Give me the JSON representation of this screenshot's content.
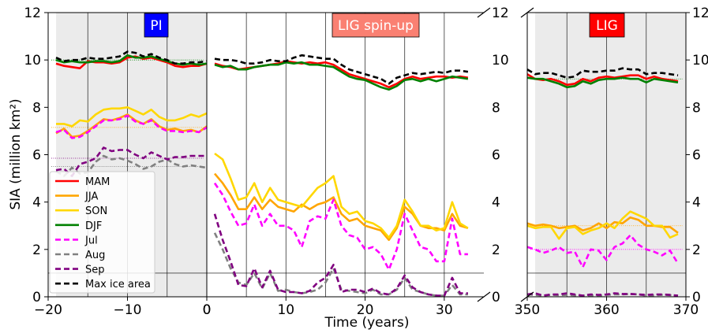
{
  "chart_data": {
    "type": "line",
    "ylabel": "SIA (million km²)",
    "xlabel": "Time (years)",
    "ylim": [
      0,
      12
    ],
    "yticks": [
      "0",
      "2",
      "4",
      "6",
      "8",
      "10",
      "12"
    ],
    "grid": false,
    "legend_placement": "lower-left",
    "colors": {
      "MAM": "#ff0000",
      "JJA": "#ffa500",
      "SON": "#ffd700",
      "DJF": "#008000",
      "Jul": "#ff00ff",
      "Aug": "#808080",
      "Sep": "#800080",
      "Max ice area": "#000000",
      "pi_label_bg": "#0000ff",
      "spinup_label_bg": "#fa8072",
      "lig_label_bg": "#ff0000",
      "shade": "#ebebeb"
    },
    "legend": [
      {
        "name": "MAM",
        "dashed": false
      },
      {
        "name": "JJA",
        "dashed": false
      },
      {
        "name": "SON",
        "dashed": false
      },
      {
        "name": "DJF",
        "dashed": false
      },
      {
        "name": "Jul",
        "dashed": true
      },
      {
        "name": "Aug",
        "dashed": true
      },
      {
        "name": "Sep",
        "dashed": true
      },
      {
        "name": "Max ice area",
        "dashed": true
      }
    ],
    "reference_line_y": 1,
    "panels": [
      {
        "id": "pi",
        "label": "PI",
        "xlim": [
          -20,
          0
        ],
        "xticks": [
          "−20",
          "−10",
          "0"
        ],
        "xtick_values": [
          -20,
          -10,
          0
        ],
        "shaded": true,
        "vlines": [
          -15,
          -10,
          -5
        ],
        "x": [
          -19,
          -18,
          -17,
          -16,
          -15,
          -14,
          -13,
          -12,
          -11,
          -10,
          -9,
          -8,
          -7,
          -6,
          -5,
          -4,
          -3,
          -2,
          -1,
          0
        ],
        "series": [
          {
            "name": "MAM",
            "values": [
              9.85,
              9.75,
              9.7,
              9.65,
              9.95,
              9.9,
              9.9,
              9.85,
              9.9,
              10.1,
              10.15,
              10.05,
              10.1,
              10.0,
              9.9,
              9.75,
              9.7,
              9.75,
              9.75,
              9.85
            ]
          },
          {
            "name": "JJA",
            "values": [
              6.9,
              7.1,
              6.75,
              6.8,
              7.0,
              7.25,
              7.5,
              7.45,
              7.55,
              7.7,
              7.45,
              7.3,
              7.5,
              7.2,
              7.05,
              7.1,
              7.0,
              7.05,
              6.95,
              7.2
            ]
          },
          {
            "name": "SON",
            "values": [
              7.3,
              7.3,
              7.2,
              7.45,
              7.4,
              7.7,
              7.9,
              7.95,
              7.95,
              8.0,
              7.85,
              7.7,
              7.9,
              7.6,
              7.45,
              7.45,
              7.55,
              7.7,
              7.6,
              7.75
            ]
          },
          {
            "name": "DJF",
            "values": [
              10.0,
              9.9,
              9.95,
              9.9,
              9.9,
              9.95,
              9.95,
              9.9,
              9.95,
              10.2,
              10.1,
              10.1,
              10.15,
              10.05,
              9.95,
              9.85,
              9.8,
              9.85,
              9.8,
              9.85
            ]
          },
          {
            "name": "Jul",
            "values": [
              6.95,
              7.05,
              6.7,
              6.75,
              6.95,
              7.2,
              7.45,
              7.45,
              7.5,
              7.65,
              7.4,
              7.3,
              7.45,
              7.15,
              7.0,
              7.0,
              6.95,
              7.0,
              6.95,
              7.15
            ]
          },
          {
            "name": "Aug",
            "values": [
              5.3,
              5.1,
              5.45,
              5.2,
              5.25,
              5.7,
              5.95,
              5.8,
              5.85,
              5.75,
              5.6,
              5.4,
              5.5,
              5.7,
              5.8,
              5.6,
              5.5,
              5.55,
              5.5,
              5.45
            ]
          },
          {
            "name": "Sep",
            "values": [
              5.35,
              5.4,
              5.1,
              5.6,
              5.7,
              5.85,
              6.3,
              6.15,
              6.2,
              6.2,
              6.0,
              5.85,
              6.1,
              5.95,
              5.8,
              5.9,
              5.9,
              5.95,
              5.95,
              5.95
            ]
          },
          {
            "name": "Max ice area",
            "values": [
              10.1,
              9.95,
              10.0,
              10.0,
              10.1,
              10.05,
              10.05,
              10.1,
              10.15,
              10.35,
              10.3,
              10.15,
              10.25,
              10.1,
              10.0,
              9.85,
              9.85,
              9.9,
              9.9,
              9.95
            ]
          }
        ],
        "means": {
          "DJF": 10.0,
          "JJA": 7.15,
          "Sep": 5.85,
          "Aug": 5.5
        }
      },
      {
        "id": "spinup",
        "label": "LIG spin-up",
        "xlim": [
          0,
          35
        ],
        "xticks": [
          "0",
          "10",
          "20",
          "30"
        ],
        "xtick_values": [
          0,
          10,
          20,
          30
        ],
        "shaded": false,
        "vlines": [
          5,
          10,
          15,
          20,
          25,
          30
        ],
        "x": [
          1,
          2,
          3,
          4,
          5,
          6,
          7,
          8,
          9,
          10,
          11,
          12,
          13,
          14,
          15,
          16,
          17,
          18,
          19,
          20,
          21,
          22,
          23,
          24,
          25,
          26,
          27,
          28,
          29,
          30,
          31,
          32,
          33
        ],
        "series": [
          {
            "name": "MAM",
            "values": [
              9.85,
              9.75,
              9.7,
              9.6,
              9.65,
              9.7,
              9.75,
              9.8,
              9.85,
              9.95,
              9.9,
              9.85,
              9.9,
              9.85,
              9.9,
              9.8,
              9.6,
              9.4,
              9.3,
              9.2,
              9.1,
              9.0,
              8.85,
              9.0,
              9.2,
              9.3,
              9.2,
              9.25,
              9.3,
              9.3,
              9.25,
              9.3,
              9.25
            ]
          },
          {
            "name": "JJA",
            "values": [
              5.2,
              4.8,
              4.3,
              3.7,
              3.7,
              4.2,
              3.7,
              4.1,
              3.8,
              3.7,
              3.6,
              3.9,
              3.7,
              3.9,
              4.0,
              4.2,
              3.5,
              3.2,
              3.3,
              3.0,
              2.9,
              2.8,
              2.4,
              2.9,
              3.8,
              3.5,
              3.0,
              2.9,
              2.9,
              2.8,
              3.5,
              3.0,
              2.9
            ]
          },
          {
            "name": "SON",
            "values": [
              6.05,
              5.8,
              5.0,
              4.1,
              4.2,
              4.8,
              4.0,
              4.6,
              4.1,
              4.0,
              3.9,
              3.8,
              4.2,
              4.6,
              4.8,
              5.1,
              3.8,
              3.5,
              3.6,
              3.2,
              3.1,
              2.9,
              2.5,
              3.0,
              4.1,
              3.6,
              3.0,
              3.0,
              2.8,
              2.9,
              4.0,
              3.1,
              2.9
            ]
          },
          {
            "name": "DJF",
            "values": [
              9.8,
              9.7,
              9.75,
              9.6,
              9.6,
              9.7,
              9.75,
              9.8,
              9.8,
              9.9,
              9.85,
              9.9,
              9.8,
              9.8,
              9.75,
              9.7,
              9.5,
              9.3,
              9.2,
              9.15,
              9.0,
              8.85,
              8.75,
              8.9,
              9.15,
              9.2,
              9.1,
              9.2,
              9.1,
              9.2,
              9.3,
              9.25,
              9.2
            ]
          },
          {
            "name": "Jul",
            "values": [
              4.8,
              4.3,
              3.6,
              3.0,
              3.1,
              3.9,
              3.0,
              3.5,
              3.0,
              3.0,
              2.8,
              2.1,
              3.2,
              3.4,
              3.3,
              4.1,
              3.0,
              2.6,
              2.5,
              2.0,
              2.1,
              1.8,
              1.15,
              2.0,
              3.5,
              2.8,
              2.1,
              2.0,
              1.5,
              1.5,
              3.3,
              1.8,
              1.8
            ]
          },
          {
            "name": "Aug",
            "values": [
              2.7,
              2.0,
              1.2,
              0.6,
              0.5,
              1.0,
              0.35,
              1.0,
              0.25,
              0.3,
              0.2,
              0.15,
              0.2,
              0.3,
              0.6,
              1.2,
              0.3,
              0.25,
              0.2,
              0.15,
              0.3,
              0.1,
              0.1,
              0.3,
              0.8,
              0.3,
              0.2,
              0.1,
              0.05,
              0.05,
              0.5,
              0.1,
              0.1
            ]
          },
          {
            "name": "Sep",
            "values": [
              3.5,
              2.4,
              1.5,
              0.5,
              0.45,
              1.2,
              0.4,
              1.1,
              0.3,
              0.2,
              0.2,
              0.15,
              0.25,
              0.6,
              0.8,
              1.35,
              0.2,
              0.3,
              0.3,
              0.2,
              0.35,
              0.15,
              0.1,
              0.35,
              0.9,
              0.4,
              0.2,
              0.1,
              0.05,
              0.05,
              0.8,
              0.15,
              0.15
            ]
          },
          {
            "name": "Max ice area",
            "values": [
              10.05,
              10.0,
              10.0,
              9.95,
              9.85,
              9.85,
              9.9,
              10.0,
              9.95,
              9.95,
              10.1,
              10.2,
              10.15,
              10.1,
              10.05,
              10.05,
              9.8,
              9.6,
              9.5,
              9.4,
              9.3,
              9.2,
              9.0,
              9.25,
              9.35,
              9.45,
              9.4,
              9.45,
              9.5,
              9.45,
              9.55,
              9.55,
              9.5
            ]
          }
        ]
      },
      {
        "id": "lig",
        "label": "LIG",
        "xlim": [
          350,
          370
        ],
        "xticks": [
          "350",
          "360",
          "370"
        ],
        "xtick_values": [
          350,
          360,
          370
        ],
        "shaded": true,
        "vlines": [
          355,
          360,
          365
        ],
        "x": [
          350,
          351,
          352,
          353,
          354,
          355,
          356,
          357,
          358,
          359,
          360,
          361,
          362,
          363,
          364,
          365,
          366,
          367,
          368,
          369
        ],
        "series": [
          {
            "name": "MAM",
            "values": [
              9.4,
              9.2,
              9.15,
              9.2,
              9.1,
              8.95,
              9.0,
              9.2,
              9.1,
              9.25,
              9.3,
              9.25,
              9.3,
              9.35,
              9.35,
              9.2,
              9.3,
              9.2,
              9.15,
              9.1
            ]
          },
          {
            "name": "JJA",
            "values": [
              3.1,
              3.0,
              3.05,
              3.0,
              2.9,
              2.95,
              3.0,
              2.8,
              2.9,
              3.1,
              2.9,
              3.15,
              3.1,
              3.35,
              3.25,
              3.0,
              3.0,
              2.95,
              2.95,
              2.7
            ]
          },
          {
            "name": "SON",
            "values": [
              3.0,
              2.9,
              2.95,
              2.95,
              2.45,
              2.9,
              2.95,
              2.65,
              2.8,
              2.9,
              3.1,
              2.9,
              3.3,
              3.6,
              3.45,
              3.3,
              3.0,
              3.0,
              2.5,
              2.65
            ]
          },
          {
            "name": "DJF",
            "values": [
              9.25,
              9.2,
              9.2,
              9.1,
              9.0,
              8.85,
              8.9,
              9.1,
              9.0,
              9.15,
              9.2,
              9.2,
              9.25,
              9.2,
              9.2,
              9.05,
              9.2,
              9.15,
              9.1,
              9.05
            ]
          },
          {
            "name": "Jul",
            "values": [
              2.1,
              2.0,
              1.85,
              1.95,
              2.1,
              1.85,
              1.9,
              1.25,
              2.0,
              1.95,
              1.55,
              2.1,
              2.25,
              2.6,
              2.2,
              2.0,
              1.9,
              1.75,
              1.95,
              1.4
            ]
          },
          {
            "name": "Aug",
            "values": [
              0.1,
              0.08,
              0.05,
              0.08,
              0.07,
              0.08,
              0.06,
              0.05,
              0.06,
              0.05,
              0.08,
              0.1,
              0.1,
              0.12,
              0.1,
              0.05,
              0.06,
              0.08,
              0.07,
              0.05
            ]
          },
          {
            "name": "Sep",
            "values": [
              0.1,
              0.15,
              0.05,
              0.1,
              0.1,
              0.15,
              0.1,
              0.05,
              0.1,
              0.08,
              0.1,
              0.15,
              0.12,
              0.12,
              0.1,
              0.08,
              0.1,
              0.1,
              0.08,
              0.05
            ]
          },
          {
            "name": "Max ice area",
            "values": [
              9.6,
              9.4,
              9.45,
              9.45,
              9.35,
              9.25,
              9.3,
              9.55,
              9.5,
              9.5,
              9.55,
              9.55,
              9.65,
              9.6,
              9.6,
              9.4,
              9.45,
              9.45,
              9.4,
              9.35
            ]
          }
        ],
        "means": {
          "DJF": 9.2,
          "JJA": 3.0,
          "Jul": 2.0
        }
      }
    ]
  }
}
